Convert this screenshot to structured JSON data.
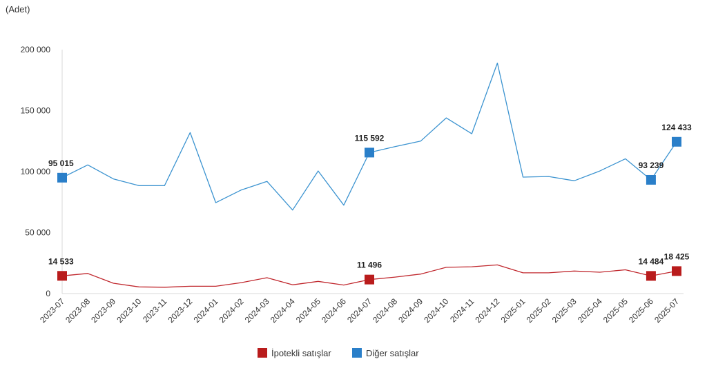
{
  "chart_data": {
    "type": "line",
    "unit_label": "(Adet)",
    "categories": [
      "2023-07",
      "2023-08",
      "2023-09",
      "2023-10",
      "2023-11",
      "2023-12",
      "2024-01",
      "2024-02",
      "2024-03",
      "2024-04",
      "2024-05",
      "2024-06",
      "2024-07",
      "2024-08",
      "2024-09",
      "2024-10",
      "2024-11",
      "2024-12",
      "2025-01",
      "2025-02",
      "2025-03",
      "2025-04",
      "2025-05",
      "2025-06",
      "2025-07"
    ],
    "ylim": [
      0,
      200000
    ],
    "yticks": [
      0,
      50000,
      100000,
      150000,
      200000
    ],
    "ytick_labels": [
      "0",
      "50 000",
      "100 000",
      "150 000",
      "200 000"
    ],
    "grid": false,
    "legend_position": "bottom",
    "series": [
      {
        "name": "İpotekli satışlar",
        "color": "#c0272d",
        "marker_color": "#b91c1c",
        "values": [
          14533,
          16500,
          8500,
          5500,
          5200,
          6000,
          6000,
          9000,
          13000,
          7200,
          10000,
          7000,
          11496,
          13500,
          16000,
          21500,
          22000,
          23500,
          17000,
          17000,
          18500,
          17500,
          19500,
          14484,
          18425
        ],
        "highlights": [
          {
            "index": 0,
            "label": "14 533"
          },
          {
            "index": 12,
            "label": "11 496"
          },
          {
            "index": 23,
            "label": "14 484"
          },
          {
            "index": 24,
            "label": "18 425"
          }
        ]
      },
      {
        "name": "Diğer satışlar",
        "color": "#3b93d0",
        "marker_color": "#2a7fc9",
        "values": [
          95015,
          105500,
          94000,
          88500,
          88500,
          132000,
          74500,
          85000,
          92000,
          68500,
          100500,
          72500,
          115592,
          120500,
          125000,
          144000,
          131000,
          189000,
          95500,
          96000,
          92500,
          100500,
          110500,
          93239,
          124433
        ],
        "highlights": [
          {
            "index": 0,
            "label": "95 015"
          },
          {
            "index": 12,
            "label": "115 592"
          },
          {
            "index": 23,
            "label": "93 239"
          },
          {
            "index": 24,
            "label": "124 433"
          }
        ]
      }
    ]
  }
}
